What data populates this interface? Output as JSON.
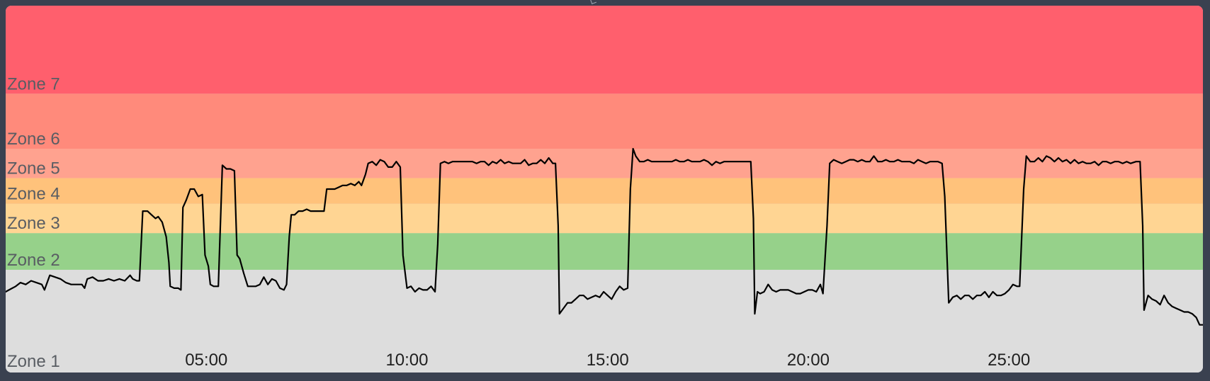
{
  "chart_data": {
    "type": "line",
    "title": "",
    "xlabel": "",
    "ylabel": "",
    "xlim": [
      0,
      1790
    ],
    "ylim": [
      0,
      100
    ],
    "grid": false,
    "legend": "none",
    "x_tick_values": [
      300,
      600,
      900,
      1200,
      1500
    ],
    "x_tick_labels": [
      "05:00",
      "10:00",
      "15:00",
      "20:00",
      "25:00"
    ],
    "zones": [
      {
        "name": "Zone 1",
        "from": 0,
        "to": 28,
        "color": "#dddddd"
      },
      {
        "name": "Zone 2",
        "from": 28,
        "to": 38,
        "color": "#96d18a"
      },
      {
        "name": "Zone 3",
        "from": 38,
        "to": 46,
        "color": "#ffd593"
      },
      {
        "name": "Zone 4",
        "from": 46,
        "to": 53,
        "color": "#ffc27b"
      },
      {
        "name": "Zone 5",
        "from": 53,
        "to": 61,
        "color": "#ffa28f"
      },
      {
        "name": "Zone 6",
        "from": 61,
        "to": 76,
        "color": "#ff8a7b"
      },
      {
        "name": "Zone 7",
        "from": 76,
        "to": 100,
        "color": "#ff5f6d"
      }
    ],
    "series": [
      {
        "line_color": "#000000",
        "points": [
          [
            0,
            22.0
          ],
          [
            5,
            22.5
          ],
          [
            15,
            23.5
          ],
          [
            22,
            24.5
          ],
          [
            30,
            24
          ],
          [
            38,
            25
          ],
          [
            46,
            24.5
          ],
          [
            54,
            24
          ],
          [
            58,
            22.5
          ],
          [
            66,
            26.5
          ],
          [
            74,
            26
          ],
          [
            82,
            25.5
          ],
          [
            90,
            24.5
          ],
          [
            98,
            24
          ],
          [
            106,
            24
          ],
          [
            114,
            24
          ],
          [
            118,
            23
          ],
          [
            122,
            25.5
          ],
          [
            130,
            26
          ],
          [
            138,
            25
          ],
          [
            146,
            25
          ],
          [
            154,
            25.5
          ],
          [
            162,
            25
          ],
          [
            170,
            25.5
          ],
          [
            178,
            25
          ],
          [
            186,
            26.5
          ],
          [
            190,
            25.5
          ],
          [
            196,
            25
          ],
          [
            200,
            25
          ],
          [
            205,
            44
          ],
          [
            212,
            44
          ],
          [
            218,
            43
          ],
          [
            224,
            42
          ],
          [
            228,
            42.5
          ],
          [
            234,
            41
          ],
          [
            240,
            37
          ],
          [
            244,
            30
          ],
          [
            246,
            23.5
          ],
          [
            252,
            23
          ],
          [
            258,
            23
          ],
          [
            262,
            22.5
          ],
          [
            265,
            45
          ],
          [
            270,
            47
          ],
          [
            276,
            50
          ],
          [
            282,
            50
          ],
          [
            288,
            48
          ],
          [
            294,
            48.5
          ],
          [
            298,
            32
          ],
          [
            303,
            29
          ],
          [
            306,
            24
          ],
          [
            311,
            23.5
          ],
          [
            318,
            23.5
          ],
          [
            324,
            56.5
          ],
          [
            330,
            55.5
          ],
          [
            336,
            55.5
          ],
          [
            342,
            55
          ],
          [
            346,
            32
          ],
          [
            350,
            31
          ],
          [
            356,
            27
          ],
          [
            362,
            23.5
          ],
          [
            368,
            23.5
          ],
          [
            374,
            23.5
          ],
          [
            380,
            24
          ],
          [
            386,
            26
          ],
          [
            392,
            24
          ],
          [
            398,
            25.5
          ],
          [
            404,
            25
          ],
          [
            410,
            23
          ],
          [
            416,
            22.5
          ],
          [
            420,
            24
          ],
          [
            424,
            37
          ],
          [
            427,
            43
          ],
          [
            432,
            43
          ],
          [
            438,
            44
          ],
          [
            444,
            44
          ],
          [
            450,
            44.5
          ],
          [
            456,
            44
          ],
          [
            462,
            44
          ],
          [
            468,
            44
          ],
          [
            472,
            44
          ],
          [
            476,
            44
          ],
          [
            480,
            50
          ],
          [
            486,
            50
          ],
          [
            492,
            50
          ],
          [
            498,
            50.5
          ],
          [
            504,
            51
          ],
          [
            510,
            51
          ],
          [
            516,
            51.5
          ],
          [
            522,
            51
          ],
          [
            528,
            52
          ],
          [
            532,
            51
          ],
          [
            538,
            54
          ],
          [
            542,
            57
          ],
          [
            548,
            57.5
          ],
          [
            554,
            56.5
          ],
          [
            560,
            58
          ],
          [
            566,
            57.5
          ],
          [
            572,
            56
          ],
          [
            578,
            56
          ],
          [
            584,
            57.5
          ],
          [
            590,
            56
          ],
          [
            594,
            32
          ],
          [
            600,
            23
          ],
          [
            606,
            23.5
          ],
          [
            612,
            22
          ],
          [
            618,
            23
          ],
          [
            624,
            22.5
          ],
          [
            630,
            22.5
          ],
          [
            636,
            23.5
          ],
          [
            642,
            22
          ],
          [
            646,
            35
          ],
          [
            650,
            57
          ],
          [
            656,
            57.5
          ],
          [
            662,
            57
          ],
          [
            668,
            57.5
          ],
          [
            674,
            57.5
          ],
          [
            680,
            57.5
          ],
          [
            686,
            57.5
          ],
          [
            692,
            57.5
          ],
          [
            698,
            57.5
          ],
          [
            704,
            57
          ],
          [
            710,
            57.5
          ],
          [
            716,
            57.5
          ],
          [
            722,
            56.5
          ],
          [
            728,
            57.5
          ],
          [
            734,
            57
          ],
          [
            740,
            58
          ],
          [
            746,
            57
          ],
          [
            752,
            57.5
          ],
          [
            758,
            57
          ],
          [
            764,
            57
          ],
          [
            770,
            57
          ],
          [
            776,
            58
          ],
          [
            782,
            56.5
          ],
          [
            788,
            57
          ],
          [
            794,
            57
          ],
          [
            800,
            58
          ],
          [
            806,
            57
          ],
          [
            812,
            58.5
          ],
          [
            818,
            57
          ],
          [
            822,
            57
          ],
          [
            826,
            40
          ],
          [
            828,
            16
          ],
          [
            834,
            17.5
          ],
          [
            840,
            19
          ],
          [
            846,
            19
          ],
          [
            852,
            20
          ],
          [
            858,
            21
          ],
          [
            864,
            21
          ],
          [
            870,
            20
          ],
          [
            876,
            20.5
          ],
          [
            882,
            21
          ],
          [
            888,
            20.5
          ],
          [
            894,
            22
          ],
          [
            900,
            21
          ],
          [
            906,
            20
          ],
          [
            912,
            22
          ],
          [
            918,
            23.5
          ],
          [
            924,
            22.5
          ],
          [
            930,
            23
          ],
          [
            934,
            50
          ],
          [
            938,
            61
          ],
          [
            942,
            59
          ],
          [
            948,
            57.5
          ],
          [
            954,
            57.5
          ],
          [
            960,
            58
          ],
          [
            966,
            57.5
          ],
          [
            972,
            57.5
          ],
          [
            978,
            57.5
          ],
          [
            984,
            57.5
          ],
          [
            990,
            57.5
          ],
          [
            996,
            57.5
          ],
          [
            1002,
            58
          ],
          [
            1008,
            57.5
          ],
          [
            1014,
            57.5
          ],
          [
            1020,
            58
          ],
          [
            1026,
            57.5
          ],
          [
            1032,
            57.5
          ],
          [
            1038,
            57.5
          ],
          [
            1044,
            58
          ],
          [
            1050,
            57.5
          ],
          [
            1056,
            56.5
          ],
          [
            1062,
            57.5
          ],
          [
            1068,
            57
          ],
          [
            1074,
            57.5
          ],
          [
            1080,
            57.5
          ],
          [
            1086,
            57.5
          ],
          [
            1092,
            57.5
          ],
          [
            1098,
            57.5
          ],
          [
            1104,
            57.5
          ],
          [
            1110,
            57.5
          ],
          [
            1114,
            57.5
          ],
          [
            1118,
            42
          ],
          [
            1120,
            16
          ],
          [
            1124,
            22
          ],
          [
            1128,
            21.5
          ],
          [
            1134,
            22
          ],
          [
            1140,
            24
          ],
          [
            1146,
            22.5
          ],
          [
            1152,
            22
          ],
          [
            1158,
            22.5
          ],
          [
            1164,
            22.5
          ],
          [
            1170,
            22.5
          ],
          [
            1176,
            22
          ],
          [
            1182,
            21.5
          ],
          [
            1188,
            21.5
          ],
          [
            1194,
            22
          ],
          [
            1200,
            22.5
          ],
          [
            1206,
            22.5
          ],
          [
            1212,
            22
          ],
          [
            1218,
            24
          ],
          [
            1222,
            21.5
          ],
          [
            1228,
            40
          ],
          [
            1232,
            57
          ],
          [
            1238,
            58
          ],
          [
            1244,
            57.5
          ],
          [
            1250,
            57
          ],
          [
            1256,
            57.5
          ],
          [
            1262,
            58
          ],
          [
            1268,
            58
          ],
          [
            1274,
            57.5
          ],
          [
            1280,
            58
          ],
          [
            1286,
            57.5
          ],
          [
            1292,
            57.5
          ],
          [
            1298,
            59
          ],
          [
            1304,
            57.5
          ],
          [
            1310,
            57.5
          ],
          [
            1316,
            58
          ],
          [
            1322,
            57.5
          ],
          [
            1328,
            57.5
          ],
          [
            1334,
            58
          ],
          [
            1340,
            57.5
          ],
          [
            1346,
            57.5
          ],
          [
            1352,
            57.5
          ],
          [
            1358,
            57
          ],
          [
            1364,
            58
          ],
          [
            1370,
            57.5
          ],
          [
            1376,
            57
          ],
          [
            1382,
            57.5
          ],
          [
            1388,
            57.5
          ],
          [
            1394,
            57.5
          ],
          [
            1400,
            57
          ],
          [
            1404,
            48
          ],
          [
            1410,
            19
          ],
          [
            1416,
            20.5
          ],
          [
            1422,
            21
          ],
          [
            1428,
            20
          ],
          [
            1434,
            21
          ],
          [
            1440,
            21
          ],
          [
            1446,
            20
          ],
          [
            1452,
            21
          ],
          [
            1458,
            21
          ],
          [
            1464,
            22
          ],
          [
            1470,
            20.5
          ],
          [
            1476,
            22
          ],
          [
            1482,
            21
          ],
          [
            1488,
            21
          ],
          [
            1494,
            21.5
          ],
          [
            1500,
            22.5
          ],
          [
            1506,
            24
          ],
          [
            1512,
            23.5
          ],
          [
            1516,
            23.5
          ],
          [
            1522,
            50
          ],
          [
            1526,
            59
          ],
          [
            1532,
            57.5
          ],
          [
            1538,
            57.5
          ],
          [
            1544,
            58.5
          ],
          [
            1550,
            57.5
          ],
          [
            1556,
            59
          ],
          [
            1562,
            58.5
          ],
          [
            1568,
            57.5
          ],
          [
            1574,
            58.5
          ],
          [
            1580,
            57.5
          ],
          [
            1586,
            58
          ],
          [
            1592,
            57
          ],
          [
            1598,
            58
          ],
          [
            1604,
            57
          ],
          [
            1610,
            57.5
          ],
          [
            1616,
            57
          ],
          [
            1622,
            57
          ],
          [
            1628,
            57.5
          ],
          [
            1634,
            56.5
          ],
          [
            1640,
            57.5
          ],
          [
            1646,
            57.5
          ],
          [
            1652,
            57
          ],
          [
            1658,
            57.5
          ],
          [
            1664,
            57.5
          ],
          [
            1670,
            57
          ],
          [
            1676,
            57.5
          ],
          [
            1682,
            57
          ],
          [
            1690,
            57.5
          ],
          [
            1696,
            57.5
          ],
          [
            1700,
            40
          ],
          [
            1702,
            17
          ],
          [
            1708,
            21
          ],
          [
            1714,
            20
          ],
          [
            1720,
            19.5
          ],
          [
            1726,
            18.5
          ],
          [
            1732,
            21
          ],
          [
            1738,
            19
          ],
          [
            1744,
            18
          ],
          [
            1750,
            17.5
          ],
          [
            1756,
            17
          ],
          [
            1762,
            16.5
          ],
          [
            1768,
            16.5
          ],
          [
            1774,
            16
          ],
          [
            1780,
            15
          ],
          [
            1785,
            13
          ],
          [
            1790,
            13
          ]
        ]
      }
    ]
  }
}
